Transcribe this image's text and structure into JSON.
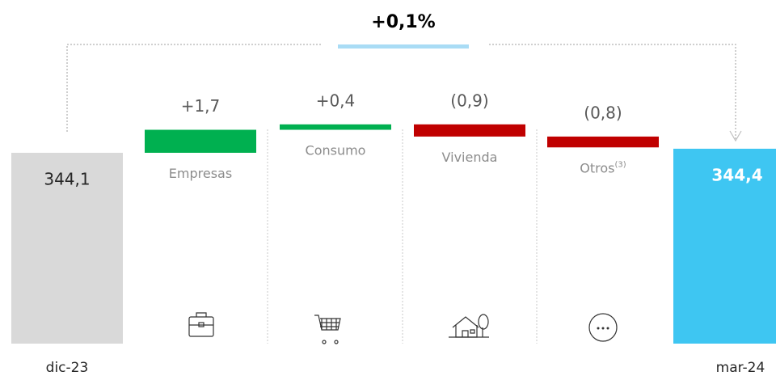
{
  "chart_data": {
    "type": "waterfall",
    "annotation": "+0,1%",
    "categories": [
      "dic-23",
      "Empresas",
      "Consumo",
      "Vivienda",
      "Otros",
      "mar-24"
    ],
    "category_notes": [
      null,
      null,
      null,
      null,
      "(3)",
      null
    ],
    "values": [
      344.1,
      1.7,
      0.4,
      -0.9,
      -0.8,
      344.4
    ],
    "value_labels": [
      "344,1",
      "+1,7",
      "+0,4",
      "(0,9)",
      "(0,8)",
      "344,4"
    ],
    "colors": [
      "#d9d9d9",
      "#00b050",
      "#00b050",
      "#c00000",
      "#c00000",
      "#3ec6f2"
    ],
    "ylim": [
      330,
      353
    ]
  }
}
